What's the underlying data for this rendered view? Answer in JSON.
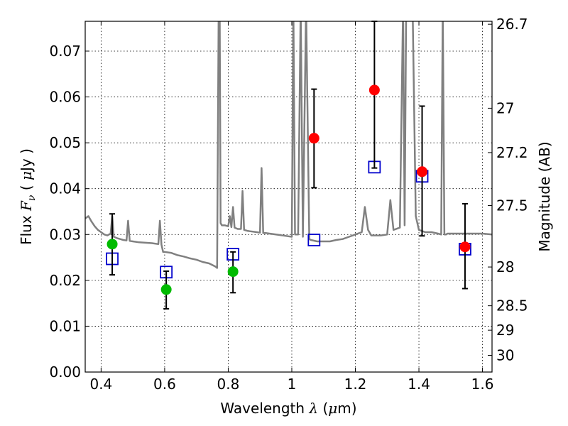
{
  "chart_data": {
    "type": "scatter",
    "xlabel": {
      "prefix": "Wavelength  ",
      "symbol": "λ",
      "open": " (",
      "unit_prefix": "μ",
      "unit": "m)"
    },
    "ylabel": {
      "prefix": "Flux  ",
      "symbol": "F",
      "subscript": "ν",
      "open": "  (  ",
      "unit_prefix": "μ",
      "unit": "Jy  )"
    },
    "y2label": "Magnitude (AB)",
    "xlim": [
      0.35,
      1.63
    ],
    "ylim": [
      0.0,
      0.0765
    ],
    "x_ticks": [
      0.4,
      0.6,
      0.8,
      1.0,
      1.2,
      1.4,
      1.6
    ],
    "x_tick_labels": [
      "0.4",
      "0.6",
      "0.8",
      "1",
      "1.2",
      "1.4",
      "1.6"
    ],
    "y_ticks": [
      0.0,
      0.01,
      0.02,
      0.03,
      0.04,
      0.05,
      0.06,
      0.07
    ],
    "y_tick_labels": [
      "0.00",
      "0.01",
      "0.02",
      "0.03",
      "0.04",
      "0.05",
      "0.06",
      "0.07"
    ],
    "mag_ticks": [
      26.7,
      27,
      27.2,
      27.5,
      28,
      28.5,
      29,
      30
    ],
    "mag_tick_labels": [
      "26.7",
      "27",
      "27.2",
      "27.5",
      "28",
      "28.5",
      "29",
      "30"
    ],
    "grid": true,
    "colors": {
      "model": "#808080",
      "detected": "#ff0000",
      "upper_limits": "#00bb00",
      "model_boxes": "#0000cc",
      "error_bars": "#000000"
    },
    "model_spectrum": {
      "x": [
        0.35,
        0.36,
        0.37,
        0.38,
        0.39,
        0.4,
        0.41,
        0.42,
        0.43,
        0.435,
        0.44,
        0.45,
        0.46,
        0.47,
        0.48,
        0.485,
        0.49,
        0.5,
        0.52,
        0.54,
        0.56,
        0.58,
        0.585,
        0.59,
        0.595,
        0.6,
        0.62,
        0.64,
        0.66,
        0.68,
        0.7,
        0.72,
        0.74,
        0.76,
        0.765,
        0.77,
        0.773,
        0.776,
        0.78,
        0.79,
        0.8,
        0.805,
        0.81,
        0.815,
        0.82,
        0.83,
        0.84,
        0.845,
        0.85,
        0.86,
        0.87,
        0.88,
        0.89,
        0.9,
        0.905,
        0.91,
        0.92,
        0.93,
        0.94,
        0.96,
        0.98,
        1.0,
        1.005,
        1.01,
        1.02,
        1.028,
        1.035,
        1.045,
        1.055,
        1.06,
        1.08,
        1.1,
        1.12,
        1.14,
        1.16,
        1.18,
        1.2,
        1.22,
        1.23,
        1.24,
        1.25,
        1.28,
        1.3,
        1.31,
        1.32,
        1.34,
        1.35,
        1.355,
        1.36,
        1.38,
        1.39,
        1.4,
        1.42,
        1.44,
        1.46,
        1.47,
        1.475,
        1.48,
        1.485,
        1.49,
        1.5,
        1.52,
        1.54,
        1.56,
        1.58,
        1.6,
        1.63
      ],
      "y": [
        0.0335,
        0.034,
        0.0328,
        0.0318,
        0.031,
        0.0305,
        0.03,
        0.0298,
        0.0302,
        0.034,
        0.0295,
        0.0292,
        0.029,
        0.0288,
        0.0287,
        0.033,
        0.0286,
        0.0285,
        0.0283,
        0.0282,
        0.0281,
        0.0279,
        0.033,
        0.0278,
        0.0262,
        0.0262,
        0.026,
        0.0255,
        0.0252,
        0.0248,
        0.0245,
        0.024,
        0.0237,
        0.023,
        0.0227,
        0.08,
        0.08,
        0.0325,
        0.032,
        0.032,
        0.0318,
        0.034,
        0.0316,
        0.036,
        0.0315,
        0.0312,
        0.0312,
        0.0395,
        0.031,
        0.0308,
        0.0307,
        0.0306,
        0.0305,
        0.0304,
        0.0445,
        0.0303,
        0.0303,
        0.0302,
        0.0301,
        0.0299,
        0.0297,
        0.0295,
        0.08,
        0.03,
        0.03,
        0.08,
        0.0295,
        0.08,
        0.029,
        0.0288,
        0.0285,
        0.0285,
        0.0285,
        0.0288,
        0.029,
        0.0295,
        0.03,
        0.0305,
        0.036,
        0.031,
        0.0298,
        0.0298,
        0.03,
        0.0375,
        0.031,
        0.0315,
        0.08,
        0.032,
        0.08,
        0.08,
        0.034,
        0.031,
        0.0305,
        0.0305,
        0.0302,
        0.03,
        0.08,
        0.03,
        0.03,
        0.0302,
        0.0302,
        0.0302,
        0.0302,
        0.0302,
        0.0302,
        0.0302,
        0.03
      ]
    },
    "model_boxes": {
      "x": [
        0.435,
        0.605,
        0.815,
        1.07,
        1.26,
        1.41,
        1.545
      ],
      "y": [
        0.0247,
        0.0218,
        0.0257,
        0.0288,
        0.0447,
        0.0427,
        0.0268
      ]
    },
    "detected": {
      "x": [
        1.07,
        1.26,
        1.41,
        1.545
      ],
      "y": [
        0.051,
        0.0615,
        0.0437,
        0.0273
      ],
      "y_low": [
        0.0402,
        0.0445,
        0.0297,
        0.0182
      ],
      "y_high": [
        0.0617,
        0.0765,
        0.058,
        0.0367
      ]
    },
    "upper_limits": {
      "x": [
        0.435,
        0.605,
        0.815
      ],
      "y": [
        0.0279,
        0.018,
        0.0219
      ],
      "y_low": [
        0.0212,
        0.0138,
        0.0173
      ],
      "y_high": [
        0.0345,
        0.022,
        0.0262
      ]
    }
  }
}
